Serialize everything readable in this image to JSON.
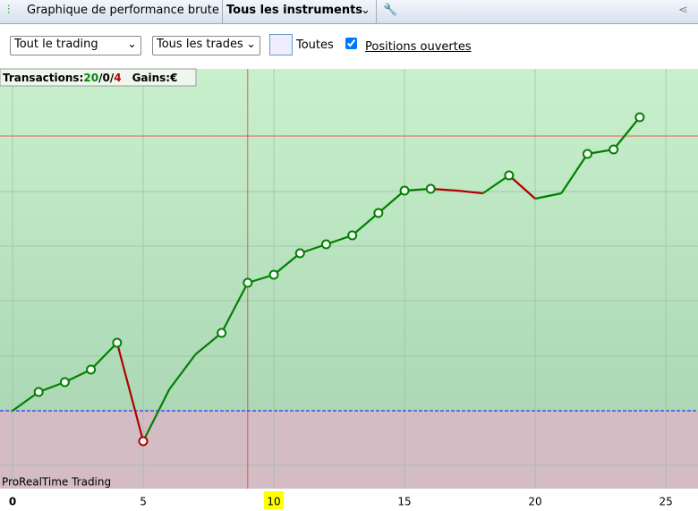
{
  "toolbar": {
    "title": "Graphique de performance brute",
    "instruments": "Tous les instruments"
  },
  "filters": {
    "scope": "Tout le trading",
    "trades": "Tous les trades",
    "period": "Toutes",
    "open_positions": "Positions ouvertes"
  },
  "stats": {
    "label": "Transactions:",
    "wins": "20",
    "sep1": "/",
    "neutral": "0",
    "sep2": "/",
    "losses": "4",
    "gains": "Gains:€"
  },
  "chart_data": {
    "type": "line",
    "watermark": "ProRealTime Trading",
    "x": [
      0,
      1,
      2,
      3,
      4,
      5,
      6,
      7,
      8,
      9,
      10,
      11,
      12,
      13,
      14,
      15,
      16,
      17,
      18,
      19,
      20,
      21,
      22,
      23,
      24
    ],
    "values": [
      0,
      2.1,
      3.2,
      4.6,
      7.6,
      -3.4,
      2.4,
      6.3,
      8.7,
      14.3,
      15.2,
      17.6,
      18.6,
      19.6,
      22.1,
      24.6,
      24.8,
      24.6,
      24.3,
      26.3,
      23.7,
      24.3,
      28.7,
      29.2,
      32.8
    ],
    "marked": [
      1,
      2,
      3,
      4,
      5,
      8,
      9,
      10,
      11,
      12,
      13,
      14,
      15,
      16,
      19,
      22,
      23,
      24
    ],
    "gain_color": "#008000",
    "loss_color": "#b00000",
    "xlim": [
      -0.48,
      26.23
    ],
    "ylim": [
      -8.7,
      38.2
    ],
    "xticks": [
      0,
      5,
      10,
      15,
      20,
      25
    ],
    "x_highlight": 10,
    "ygrid": [
      -6.1,
      6.1,
      12.3,
      18.4,
      24.5
    ],
    "cursor": {
      "x": 9,
      "y": 30.7
    },
    "baseline": 0
  }
}
